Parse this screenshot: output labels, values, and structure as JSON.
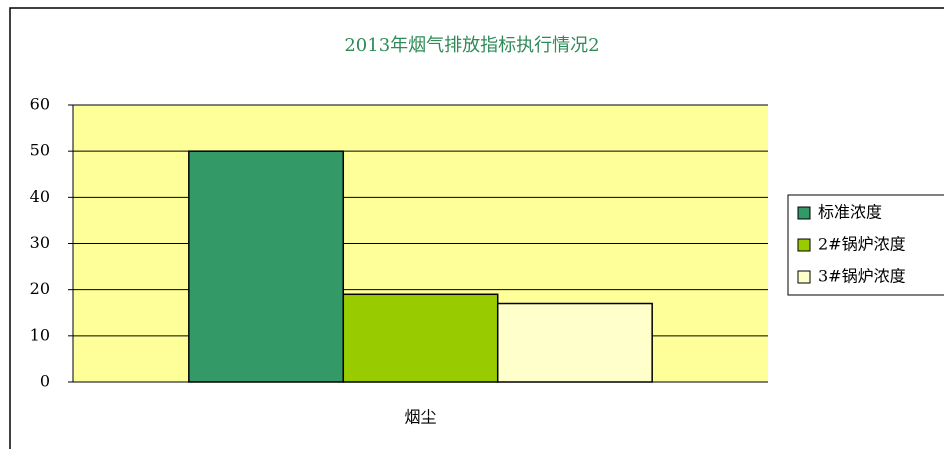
{
  "chart_data": {
    "type": "bar",
    "title": "2013年烟气排放指标执行情况2",
    "categories": [
      "烟尘"
    ],
    "series": [
      {
        "name": "标准浓度",
        "color": "#339966",
        "values": [
          50
        ]
      },
      {
        "name": "2#锅炉浓度",
        "color": "#99cc00",
        "values": [
          19
        ]
      },
      {
        "name": "3#锅炉浓度",
        "color": "#ffffcc",
        "values": [
          17
        ]
      }
    ],
    "ylim": [
      0,
      60
    ],
    "yticks": [
      0,
      10,
      20,
      30,
      40,
      50,
      60
    ],
    "grid": true,
    "plot_background": "#ffff99",
    "legend": "right"
  }
}
